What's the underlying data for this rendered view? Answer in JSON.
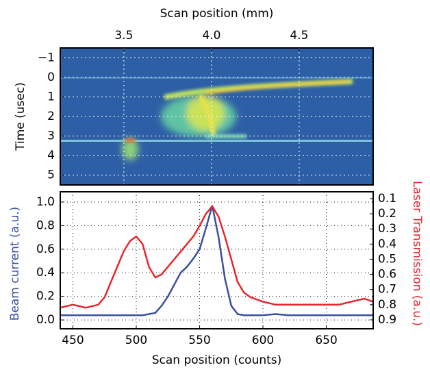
{
  "chart_data": [
    {
      "type": "heatmap",
      "xlabel": "Scan position (mm)",
      "ylabel": "Time (usec)",
      "xlim": [
        3.137,
        4.922
      ],
      "xticks": [
        3.5,
        {
          "value": 4,
          "label": "4.0"
        },
        4.5
      ],
      "ylim": [
        5.5,
        -1.5
      ],
      "yticks": [
        {
          "value": -1,
          "label": "−1"
        },
        0,
        1,
        2,
        3,
        4,
        5
      ],
      "grid": true
    },
    {
      "type": "line",
      "xlabel": "Scan position (counts)",
      "ylabel": "Beam current (a.u.)",
      "y2label": "Laser Transmission (a.u.)",
      "xlim": [
        440,
        687
      ],
      "xticks": [
        450,
        500,
        550,
        600,
        650
      ],
      "ylim": [
        -0.075,
        1.087
      ],
      "yticks": [
        {
          "value": 0,
          "label": "0.0"
        },
        0.2,
        0.4,
        0.6,
        0.8,
        {
          "value": 1,
          "label": "1.0"
        }
      ],
      "y2lim": [
        0.959,
        0.055
      ],
      "y2ticks": [
        0.1,
        0.2,
        0.3,
        0.4,
        0.5,
        0.6,
        0.7,
        0.8,
        0.9
      ],
      "grid": true,
      "x": [
        440,
        450,
        460,
        470,
        475,
        480,
        485,
        490,
        495,
        500,
        505,
        510,
        515,
        520,
        525,
        530,
        535,
        540,
        545,
        550,
        555,
        560,
        565,
        570,
        575,
        580,
        585,
        590,
        600,
        610,
        620,
        630,
        640,
        650,
        660,
        670,
        680,
        687
      ],
      "series": [
        {
          "color": "#3a4fa0",
          "values": [
            0.04,
            0.04,
            0.04,
            0.04,
            0.04,
            0.04,
            0.04,
            0.04,
            0.04,
            0.04,
            0.04,
            0.05,
            0.06,
            0.12,
            0.2,
            0.3,
            0.4,
            0.45,
            0.52,
            0.6,
            0.78,
            0.97,
            0.7,
            0.35,
            0.12,
            0.05,
            0.04,
            0.04,
            0.04,
            0.05,
            0.04,
            0.04,
            0.04,
            0.04,
            0.04,
            0.04,
            0.04,
            0.04
          ]
        },
        {
          "color": "#e8262b",
          "axis": "y2",
          "values": [
            0.82,
            0.8,
            0.82,
            0.8,
            0.75,
            0.65,
            0.55,
            0.45,
            0.38,
            0.35,
            0.4,
            0.55,
            0.62,
            0.6,
            0.55,
            0.5,
            0.45,
            0.4,
            0.35,
            0.28,
            0.2,
            0.15,
            0.22,
            0.35,
            0.5,
            0.65,
            0.72,
            0.75,
            0.78,
            0.8,
            0.8,
            0.8,
            0.8,
            0.8,
            0.8,
            0.78,
            0.76,
            0.78
          ]
        }
      ]
    }
  ]
}
